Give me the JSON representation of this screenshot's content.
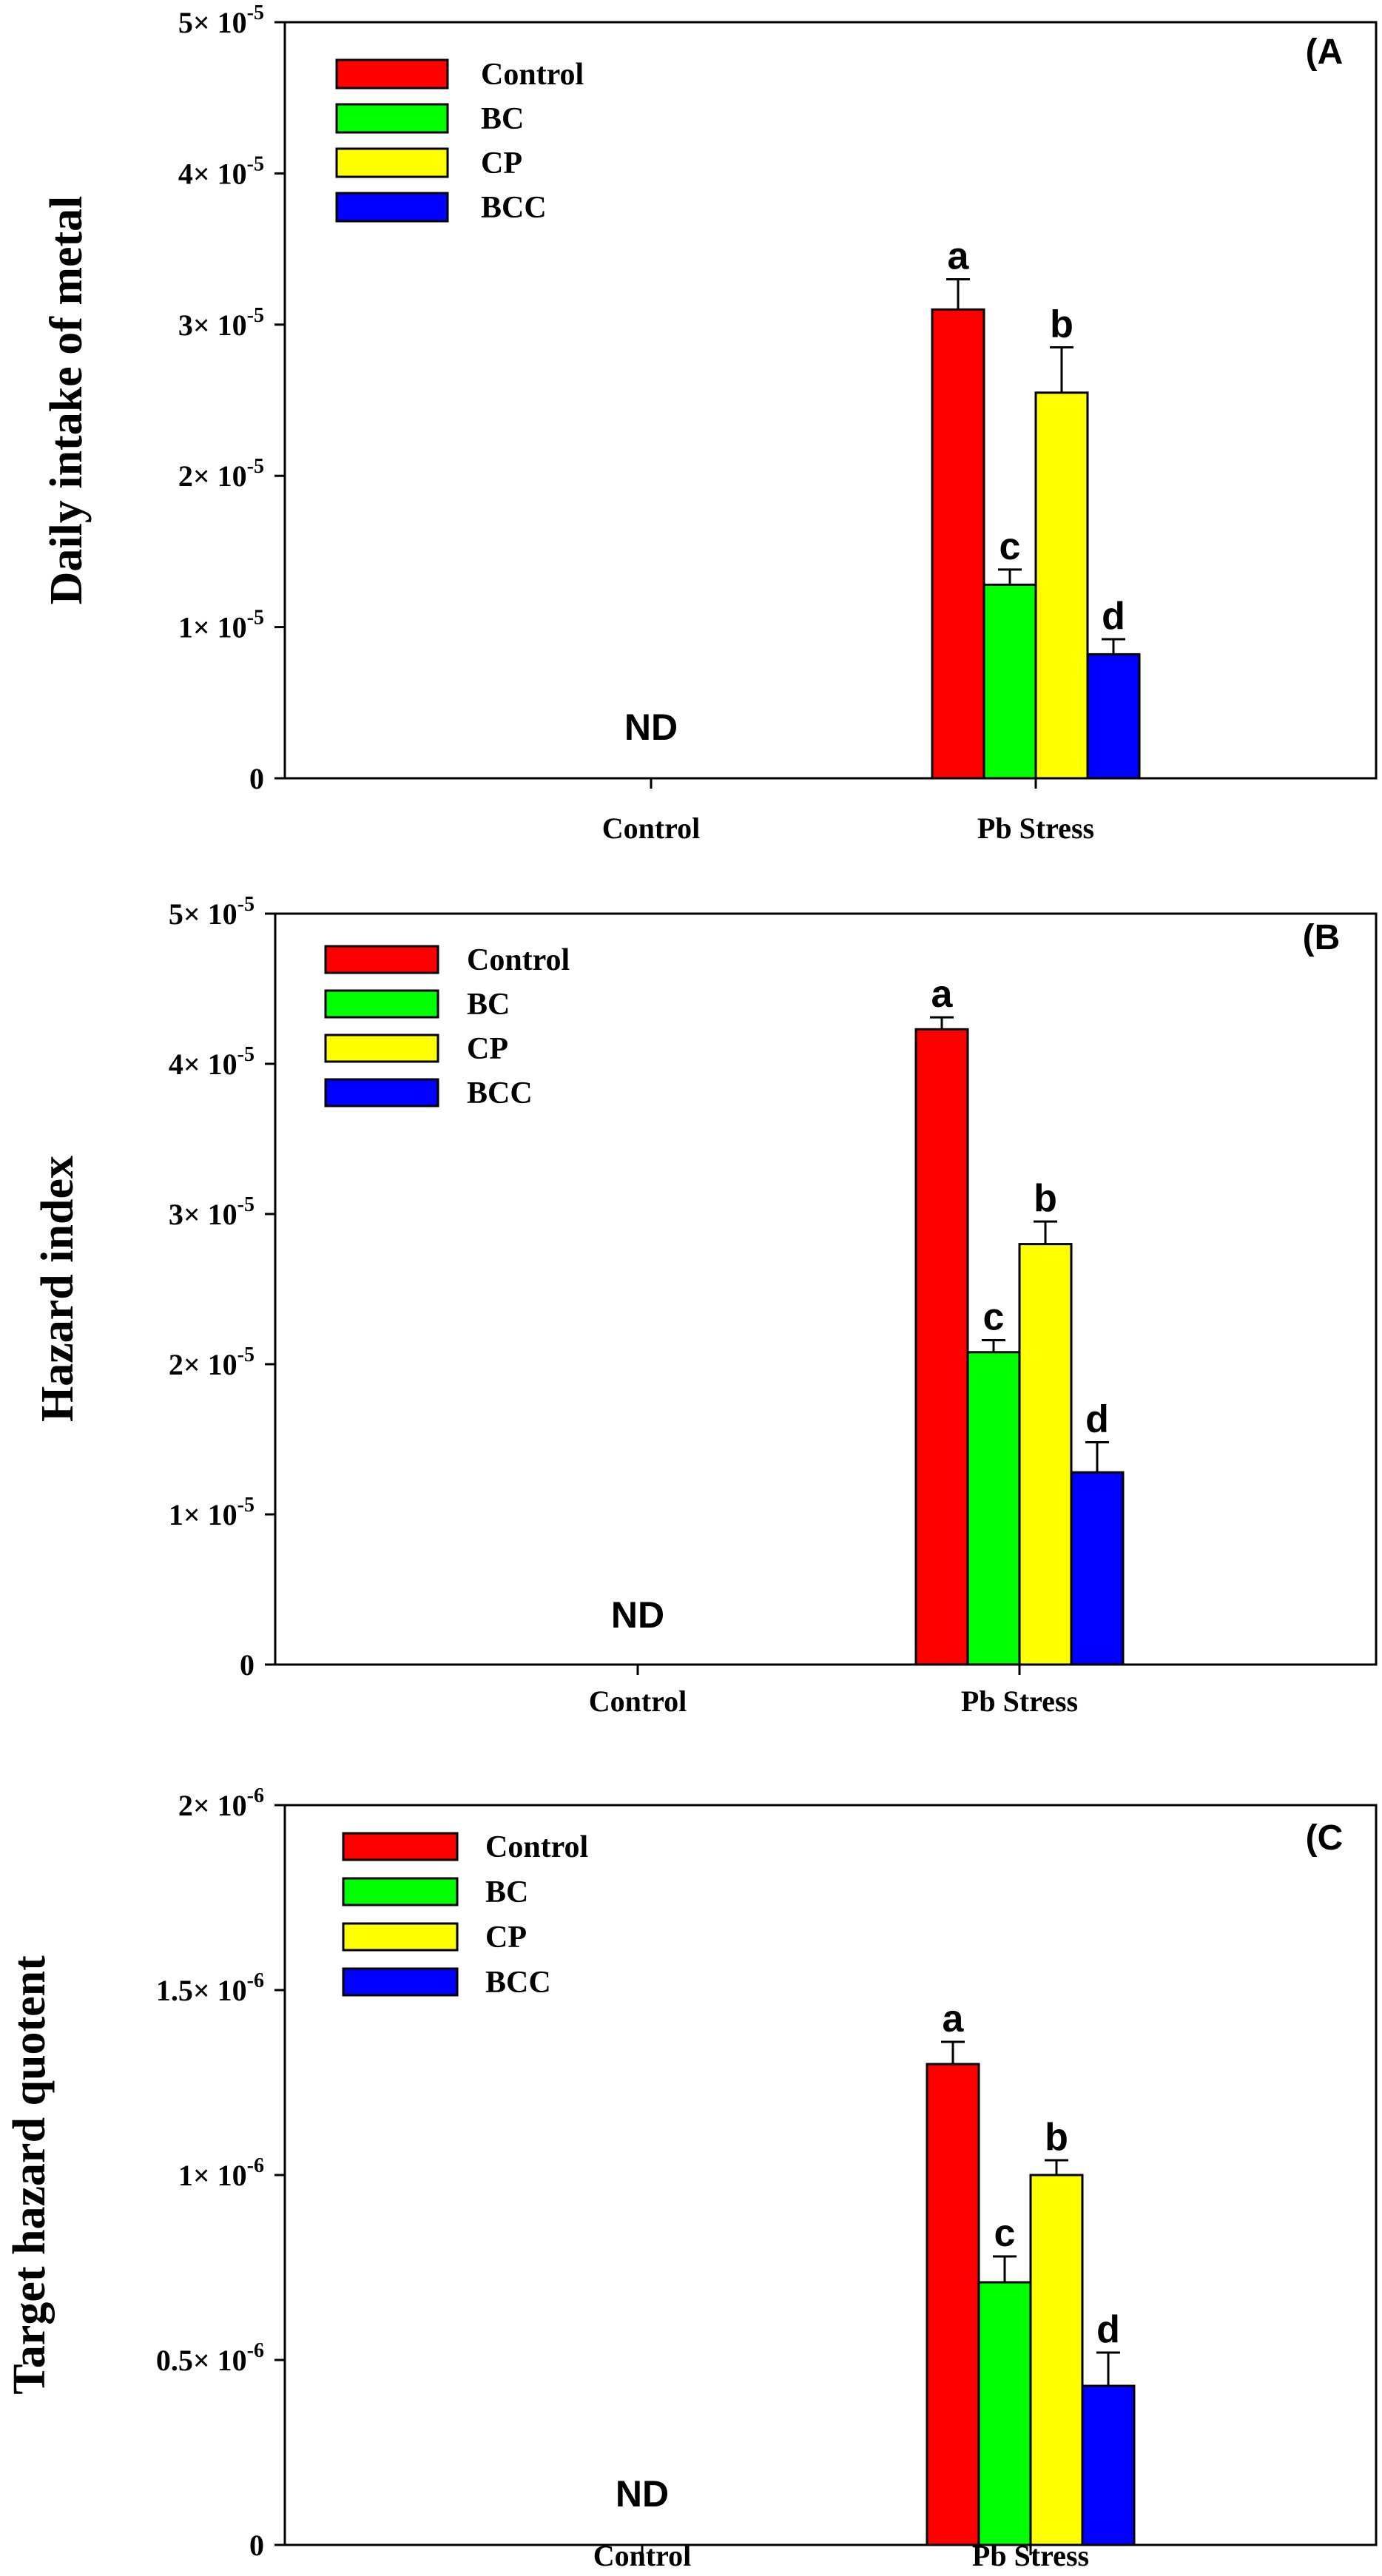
{
  "chart_data": [
    {
      "type": "bar",
      "panel_label": "(A",
      "ylabel": "Daily intake of metal",
      "categories": [
        "Control",
        "Pb Stress"
      ],
      "ylim": [
        0,
        5e-05
      ],
      "yticks": [
        {
          "value": 0,
          "label": "0"
        },
        {
          "value": 1e-05,
          "label": "1× 10",
          "exp": "-5"
        },
        {
          "value": 2e-05,
          "label": "2× 10",
          "exp": "-5"
        },
        {
          "value": 3e-05,
          "label": "3× 10",
          "exp": "-5"
        },
        {
          "value": 4e-05,
          "label": "4× 10",
          "exp": "-5"
        },
        {
          "value": 5e-05,
          "label": "5× 10",
          "exp": "-5"
        }
      ],
      "nd_label": "ND",
      "legend": [
        "Control",
        "BC",
        "CP",
        "BCC"
      ],
      "series": [
        {
          "name": "Control",
          "color": "#ff0000",
          "values": [
            null,
            3.1e-05
          ],
          "errors": [
            null,
            2e-06
          ],
          "letters": [
            "",
            "a"
          ]
        },
        {
          "name": "BC",
          "color": "#00ff00",
          "values": [
            null,
            1.28e-05
          ],
          "errors": [
            null,
            1e-06
          ],
          "letters": [
            "",
            "c"
          ]
        },
        {
          "name": "CP",
          "color": "#ffff00",
          "values": [
            null,
            2.55e-05
          ],
          "errors": [
            null,
            3e-06
          ],
          "letters": [
            "",
            "b"
          ]
        },
        {
          "name": "BCC",
          "color": "#0000ff",
          "values": [
            null,
            8.2e-06
          ],
          "errors": [
            null,
            1e-06
          ],
          "letters": [
            "",
            "d"
          ]
        }
      ]
    },
    {
      "type": "bar",
      "panel_label": "(B",
      "ylabel": "Hazard index",
      "categories": [
        "Control",
        "Pb Stress"
      ],
      "ylim": [
        0,
        5e-05
      ],
      "yticks": [
        {
          "value": 0,
          "label": "0"
        },
        {
          "value": 1e-05,
          "label": "1× 10",
          "exp": "-5"
        },
        {
          "value": 2e-05,
          "label": "2× 10",
          "exp": "-5"
        },
        {
          "value": 3e-05,
          "label": "3× 10",
          "exp": "-5"
        },
        {
          "value": 4e-05,
          "label": "4× 10",
          "exp": "-5"
        },
        {
          "value": 5e-05,
          "label": "5× 10",
          "exp": "-5"
        }
      ],
      "nd_label": "ND",
      "legend": [
        "Control",
        "BC",
        "CP",
        "BCC"
      ],
      "series": [
        {
          "name": "Control",
          "color": "#ff0000",
          "values": [
            null,
            4.23e-05
          ],
          "errors": [
            null,
            8e-07
          ],
          "letters": [
            "",
            "a"
          ]
        },
        {
          "name": "BC",
          "color": "#00ff00",
          "values": [
            null,
            2.08e-05
          ],
          "errors": [
            null,
            8e-07
          ],
          "letters": [
            "",
            "c"
          ]
        },
        {
          "name": "CP",
          "color": "#ffff00",
          "values": [
            null,
            2.8e-05
          ],
          "errors": [
            null,
            1.5e-06
          ],
          "letters": [
            "",
            "b"
          ]
        },
        {
          "name": "BCC",
          "color": "#0000ff",
          "values": [
            null,
            1.28e-05
          ],
          "errors": [
            null,
            2e-06
          ],
          "letters": [
            "",
            "d"
          ]
        }
      ]
    },
    {
      "type": "bar",
      "panel_label": "(C",
      "ylabel": "Target hazard quotent",
      "categories": [
        "Control",
        "Pb Stress"
      ],
      "ylim": [
        0,
        2e-06
      ],
      "yticks": [
        {
          "value": 0,
          "label": "0"
        },
        {
          "value": 5e-07,
          "label": "0.5× 10",
          "exp": "-6"
        },
        {
          "value": 1e-06,
          "label": "1× 10",
          "exp": "-6"
        },
        {
          "value": 1.5e-06,
          "label": "1.5× 10",
          "exp": "-6"
        },
        {
          "value": 2e-06,
          "label": "2× 10",
          "exp": "-6"
        }
      ],
      "nd_label": "ND",
      "legend": [
        "Control",
        "BC",
        "CP",
        "BCC"
      ],
      "series": [
        {
          "name": "Control",
          "color": "#ff0000",
          "values": [
            null,
            1.3e-06
          ],
          "errors": [
            null,
            6e-08
          ],
          "letters": [
            "",
            "a"
          ]
        },
        {
          "name": "BC",
          "color": "#00ff00",
          "values": [
            null,
            7.1e-07
          ],
          "errors": [
            null,
            7e-08
          ],
          "letters": [
            "",
            "c"
          ]
        },
        {
          "name": "CP",
          "color": "#ffff00",
          "values": [
            null,
            1e-06
          ],
          "errors": [
            null,
            4e-08
          ],
          "letters": [
            "",
            "b"
          ]
        },
        {
          "name": "BCC",
          "color": "#0000ff",
          "values": [
            null,
            4.3e-07
          ],
          "errors": [
            null,
            9e-08
          ],
          "letters": [
            "",
            "d"
          ]
        }
      ]
    }
  ]
}
